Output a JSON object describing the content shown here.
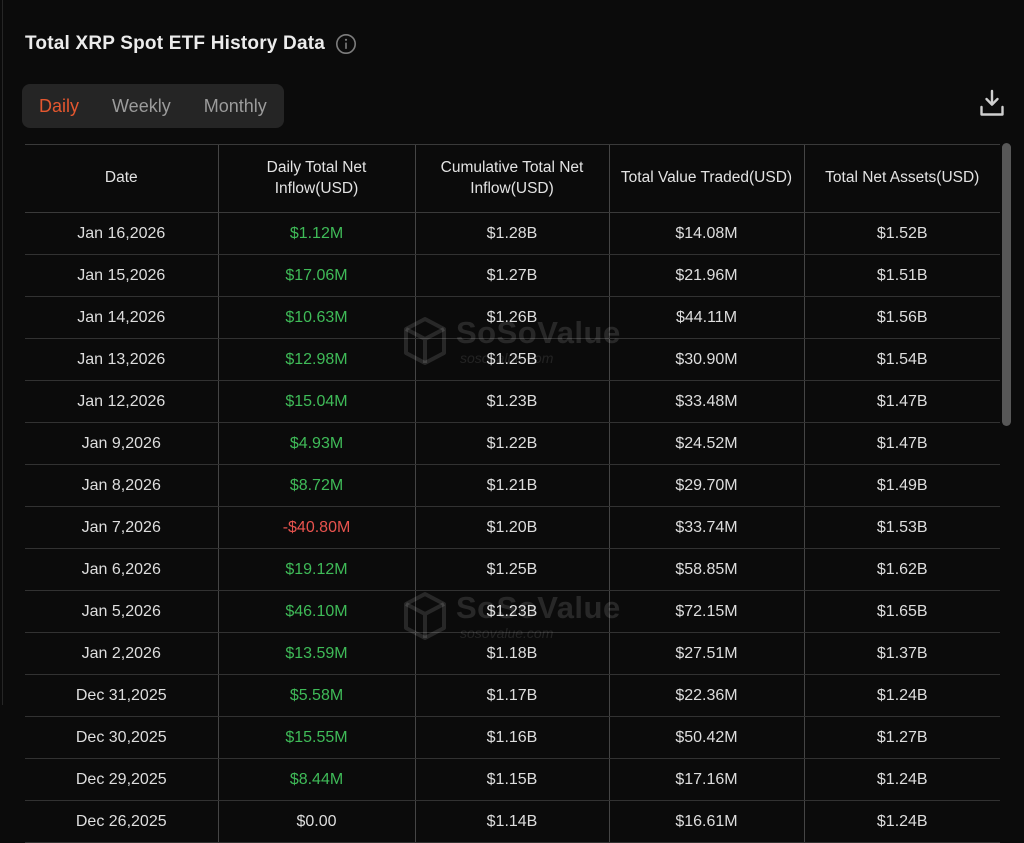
{
  "header": {
    "title": "Total XRP Spot ETF History Data"
  },
  "tabs": {
    "items": [
      {
        "label": "Daily",
        "active": true
      },
      {
        "label": "Weekly",
        "active": false
      },
      {
        "label": "Monthly",
        "active": false
      }
    ]
  },
  "icons": {
    "info": "info-icon",
    "download": "download-icon"
  },
  "colors": {
    "accent": "#e4572f",
    "positive": "#3fbb58",
    "negative": "#e9534e",
    "neutral": "#dedede"
  },
  "watermark": {
    "brand": "SoSoValue",
    "domain": "sosovalue.com"
  },
  "table": {
    "columns": [
      "Date",
      "Daily Total Net Inflow(USD)",
      "Cumulative Total Net Inflow(USD)",
      "Total Value Traded(USD)",
      "Total Net Assets(USD)"
    ],
    "rows": [
      {
        "date": "Jan 16,2026",
        "daily": "$1.12M",
        "tone": "positive",
        "cumulative": "$1.28B",
        "traded": "$14.08M",
        "assets": "$1.52B"
      },
      {
        "date": "Jan 15,2026",
        "daily": "$17.06M",
        "tone": "positive",
        "cumulative": "$1.27B",
        "traded": "$21.96M",
        "assets": "$1.51B"
      },
      {
        "date": "Jan 14,2026",
        "daily": "$10.63M",
        "tone": "positive",
        "cumulative": "$1.26B",
        "traded": "$44.11M",
        "assets": "$1.56B"
      },
      {
        "date": "Jan 13,2026",
        "daily": "$12.98M",
        "tone": "positive",
        "cumulative": "$1.25B",
        "traded": "$30.90M",
        "assets": "$1.54B"
      },
      {
        "date": "Jan 12,2026",
        "daily": "$15.04M",
        "tone": "positive",
        "cumulative": "$1.23B",
        "traded": "$33.48M",
        "assets": "$1.47B"
      },
      {
        "date": "Jan 9,2026",
        "daily": "$4.93M",
        "tone": "positive",
        "cumulative": "$1.22B",
        "traded": "$24.52M",
        "assets": "$1.47B"
      },
      {
        "date": "Jan 8,2026",
        "daily": "$8.72M",
        "tone": "positive",
        "cumulative": "$1.21B",
        "traded": "$29.70M",
        "assets": "$1.49B"
      },
      {
        "date": "Jan 7,2026",
        "daily": "-$40.80M",
        "tone": "negative",
        "cumulative": "$1.20B",
        "traded": "$33.74M",
        "assets": "$1.53B"
      },
      {
        "date": "Jan 6,2026",
        "daily": "$19.12M",
        "tone": "positive",
        "cumulative": "$1.25B",
        "traded": "$58.85M",
        "assets": "$1.62B"
      },
      {
        "date": "Jan 5,2026",
        "daily": "$46.10M",
        "tone": "positive",
        "cumulative": "$1.23B",
        "traded": "$72.15M",
        "assets": "$1.65B"
      },
      {
        "date": "Jan 2,2026",
        "daily": "$13.59M",
        "tone": "positive",
        "cumulative": "$1.18B",
        "traded": "$27.51M",
        "assets": "$1.37B"
      },
      {
        "date": "Dec 31,2025",
        "daily": "$5.58M",
        "tone": "positive",
        "cumulative": "$1.17B",
        "traded": "$22.36M",
        "assets": "$1.24B"
      },
      {
        "date": "Dec 30,2025",
        "daily": "$15.55M",
        "tone": "positive",
        "cumulative": "$1.16B",
        "traded": "$50.42M",
        "assets": "$1.27B"
      },
      {
        "date": "Dec 29,2025",
        "daily": "$8.44M",
        "tone": "positive",
        "cumulative": "$1.15B",
        "traded": "$17.16M",
        "assets": "$1.24B"
      },
      {
        "date": "Dec 26,2025",
        "daily": "$0.00",
        "tone": "neutral",
        "cumulative": "$1.14B",
        "traded": "$16.61M",
        "assets": "$1.24B"
      }
    ]
  }
}
